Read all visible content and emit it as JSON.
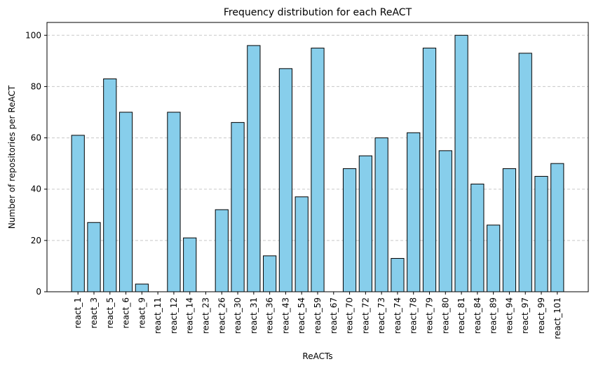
{
  "chart_data": {
    "type": "bar",
    "title": "Frequency distribution for each ReACT",
    "xlabel": "ReACTs",
    "ylabel": "Number of repositories per ReACT",
    "categories": [
      "react_1",
      "react_3",
      "react_5",
      "react_6",
      "react_9",
      "react_11",
      "react_12",
      "react_14",
      "react_23",
      "react_26",
      "react_30",
      "react_31",
      "react_36",
      "react_43",
      "react_54",
      "react_59",
      "react_67",
      "react_70",
      "react_72",
      "react_73",
      "react_74",
      "react_78",
      "react_79",
      "react_80",
      "react_81",
      "react_84",
      "react_89",
      "react_94",
      "react_97",
      "react_99",
      "react_101"
    ],
    "values": [
      61,
      27,
      83,
      70,
      3,
      0,
      70,
      21,
      0,
      32,
      66,
      96,
      14,
      87,
      37,
      95,
      0,
      48,
      53,
      60,
      13,
      62,
      95,
      55,
      100,
      42,
      26,
      48,
      93,
      45,
      50
    ],
    "ylim": [
      0,
      105
    ],
    "yticks": [
      0,
      20,
      40,
      60,
      80,
      100
    ],
    "grid": "y-dashed",
    "bar_color": "#87CEEB",
    "edge_color": "#000000",
    "grid_color": "#c8c8c8"
  }
}
